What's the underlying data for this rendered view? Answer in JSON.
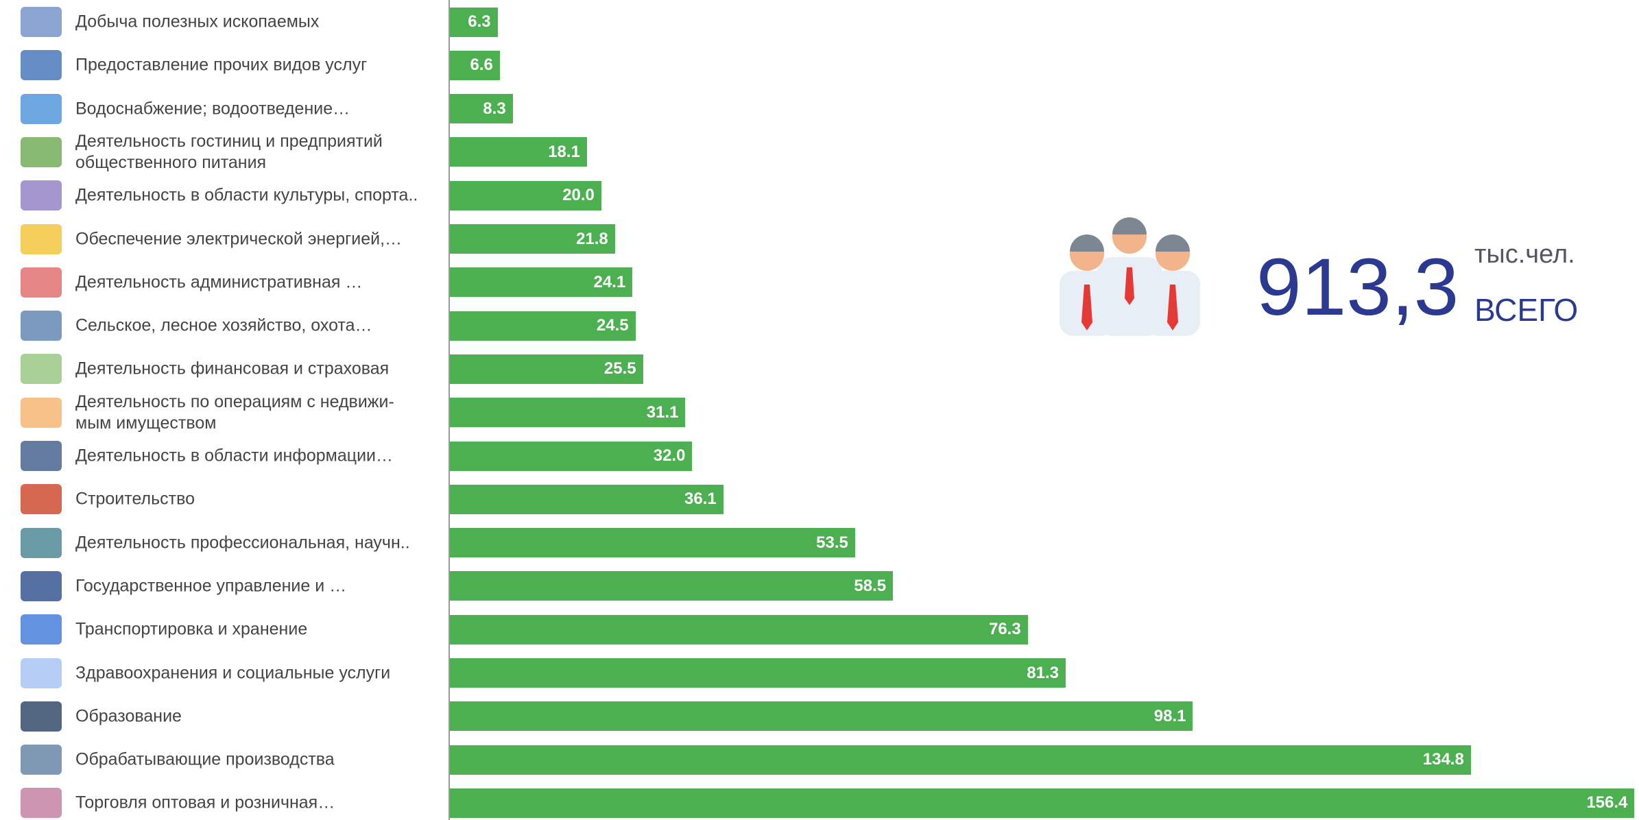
{
  "chart_data": {
    "type": "bar",
    "orientation": "horizontal",
    "categories": [
      "Добыча полезных ископаемых",
      "Предоставление прочих видов услуг",
      "Водоснабжение; водоотведение…",
      "Деятельность гостиниц и предприятий\nобщественного питания",
      "Деятельность в области культуры, спорта..",
      "Обеспечение электрической энергией,…",
      "Деятельность административная …",
      "Сельское, лесное хозяйство, охота…",
      "Деятельность финансовая и страховая",
      "Деятельность по операциям с недвижи-\nмым имуществом",
      "Деятельность в области информации…",
      "Строительство",
      "Деятельность профессиональная, научн..",
      "Государственное управление и …",
      "Транспортировка и хранение",
      "Здравоохранения и социальные услуги",
      "Образование",
      "Обрабатывающие производства",
      "Торговля оптовая и розничная…"
    ],
    "values": [
      6.3,
      6.6,
      8.3,
      18.1,
      20.0,
      21.8,
      24.1,
      24.5,
      25.5,
      31.1,
      32.0,
      36.1,
      53.5,
      58.5,
      76.3,
      81.3,
      98.1,
      134.8,
      156.4
    ],
    "value_labels": [
      "6.3",
      "6.6",
      "8.3",
      "18.1",
      "20.0",
      "21.8",
      "24.1",
      "24.5",
      "25.5",
      "31.1",
      "32.0",
      "36.1",
      "53.5",
      "58.5",
      "76.3",
      "81.3",
      "98.1",
      "134.8",
      "156.4"
    ],
    "color": "#4caf50",
    "xlim": [
      0,
      157
    ],
    "annotations": {
      "total": "913,3",
      "unit": "тыс.чел.",
      "caption": "ВСЕГО"
    }
  }
}
